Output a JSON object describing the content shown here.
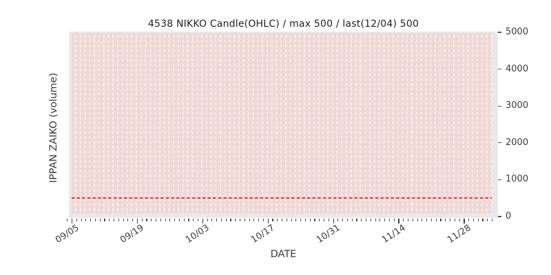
{
  "chart_data": {
    "type": "candlestick",
    "title": "4538 NIKKO Candle(OHLC) / max 500 / last(12/04) 500",
    "xlabel": "DATE",
    "ylabel": "IPPAN ZAIKO (volume)",
    "y_axis_side": "right",
    "y_ticks": [
      "0",
      "1000",
      "2000",
      "3000",
      "4000",
      "5000"
    ],
    "y_tick_values": [
      0,
      1000,
      2000,
      3000,
      4000,
      5000
    ],
    "ylim": [
      0,
      5000
    ],
    "x_ticks": [
      "09/05",
      "09/19",
      "10/03",
      "10/17",
      "10/31",
      "11/14",
      "11/28"
    ],
    "x_major_interval_days": 14,
    "x_minor_interval_days": 1,
    "x_span_days": 90,
    "first_date": "09/05",
    "last_date": "12/04",
    "series": [
      {
        "name": "IPPAN ZAIKO",
        "max": 500,
        "last": 500,
        "constant_value": 500
      }
    ],
    "reference_line": {
      "value": 500,
      "style": "dashed"
    },
    "legend": "none",
    "grid": "vertical dashed per-day gridlines"
  },
  "colors": {
    "figure_bg": "#ffffff",
    "axes_bg": "#e9e9ec",
    "candle_area_fill": "#efd9d6",
    "grid_dash": "#f8eeeb",
    "reference_line": "#e8392b",
    "tick_text": "#3a3a3a",
    "title_text": "#1f1f1f"
  }
}
